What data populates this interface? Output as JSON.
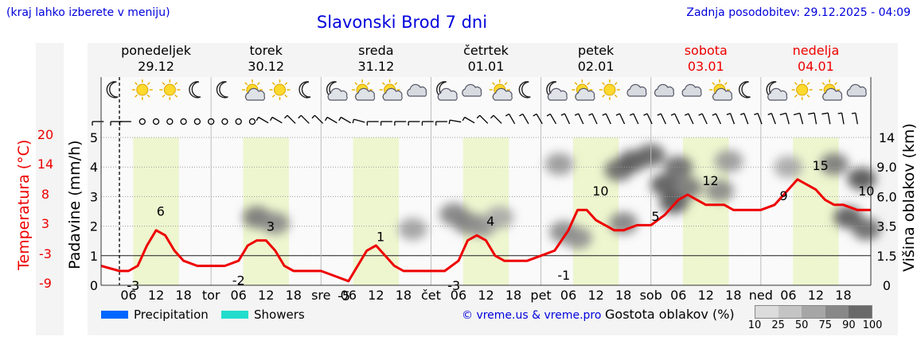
{
  "header": {
    "menu_hint": "(kraj lahko izberete v meniju)",
    "title": "Slavonski Brod 7 dni",
    "last_update": "Zadnja posodobitev: 29.12.2025 - 04:09"
  },
  "days": [
    {
      "name": "ponedeljek",
      "date": "29.12",
      "weekend": false,
      "abbr": ""
    },
    {
      "name": "torek",
      "date": "30.12",
      "weekend": false,
      "abbr": "tor"
    },
    {
      "name": "sreda",
      "date": "31.12",
      "weekend": false,
      "abbr": "sre"
    },
    {
      "name": "četrtek",
      "date": "01.01",
      "weekend": false,
      "abbr": "čet"
    },
    {
      "name": "petek",
      "date": "02.01",
      "weekend": false,
      "abbr": "pet"
    },
    {
      "name": "sobota",
      "date": "03.01",
      "weekend": true,
      "abbr": "sob"
    },
    {
      "name": "nedelja",
      "date": "04.01",
      "weekend": true,
      "abbr": "ned"
    }
  ],
  "hour_ticks": [
    "06",
    "12",
    "18"
  ],
  "weather_icons": [
    "moon-icon",
    "sun-icon",
    "sun-icon",
    "moon-icon",
    "moon-icon",
    "sun-cloud-icon",
    "sun-icon",
    "moon-icon",
    "moon-cloud-icon",
    "sun-cloud-icon",
    "sun-cloud-icon",
    "cloud-icon",
    "moon-cloud-icon",
    "cloud-icon",
    "sun-cloud-icon",
    "moon-icon",
    "moon-cloud-icon",
    "sun-cloud-icon",
    "sun-icon",
    "cloud-icon",
    "cloud-icon",
    "cloud-icon",
    "sun-cloud-icon",
    "moon-icon",
    "moon-cloud-icon",
    "sun-icon",
    "sun-cloud-icon",
    "cloud-icon"
  ],
  "chart_data": {
    "type": "line",
    "title": "Slavonski Brod 7 dni",
    "x_unit": "hours from 29.12 00:00",
    "x_range": [
      0,
      168
    ],
    "current_time_hour": 4,
    "left_axis": {
      "label": "Padavine (mm/h)",
      "ylim": [
        0,
        5
      ],
      "ticks": [
        0,
        1,
        2,
        3,
        4,
        5
      ]
    },
    "temperature_axis": {
      "label": "Temperatura (°C)",
      "ticks": [
        "20",
        "14",
        "8",
        "3",
        "-3",
        "-9"
      ],
      "color": "#ee0000"
    },
    "right_axis": {
      "label": "Višina oblakov (km)",
      "ticks": [
        "14",
        "9.0",
        "6.0",
        "3.5",
        "1.5",
        "0"
      ]
    },
    "temperature_series": {
      "name": "Temperatura",
      "unit": "°C",
      "x": [
        0,
        4,
        6,
        8,
        10,
        12,
        14,
        16,
        18,
        21,
        24,
        27,
        30,
        32,
        34,
        36,
        38,
        40,
        42,
        45,
        48,
        51,
        54,
        56,
        58,
        60,
        62,
        64,
        66,
        69,
        72,
        75,
        78,
        80,
        82,
        84,
        86,
        88,
        90,
        93,
        96,
        99,
        102,
        104,
        106,
        108,
        110,
        112,
        114,
        117,
        120,
        123,
        126,
        128,
        130,
        132,
        134,
        136,
        138,
        141,
        144,
        147,
        150,
        152,
        154,
        156,
        158,
        160,
        162,
        165,
        168
      ],
      "y": [
        -2,
        -3,
        -3,
        -2,
        2,
        5,
        4,
        1,
        -1,
        -2,
        -2,
        -2,
        -1,
        2,
        3,
        3,
        1,
        -2,
        -3,
        -3,
        -3,
        -4,
        -5,
        -2,
        1,
        2,
        0,
        -2,
        -3,
        -3,
        -3,
        -3,
        -1,
        3,
        4,
        3,
        0,
        -1,
        -1,
        -1,
        0,
        1,
        5,
        9,
        9,
        7,
        6,
        5,
        5,
        6,
        6,
        8,
        11,
        12,
        11,
        10,
        10,
        10,
        9,
        9,
        9,
        10,
        13,
        15,
        14,
        13,
        11,
        10,
        10,
        9,
        9
      ]
    },
    "temperature_labels": [
      {
        "x": 7,
        "text": "-3"
      },
      {
        "x": 13,
        "text": "6"
      },
      {
        "x": 30,
        "text": "-2"
      },
      {
        "x": 37,
        "text": "3"
      },
      {
        "x": 53,
        "text": "-5"
      },
      {
        "x": 61,
        "text": "1"
      },
      {
        "x": 77,
        "text": "-3"
      },
      {
        "x": 85,
        "text": "4"
      },
      {
        "x": 101,
        "text": "-1"
      },
      {
        "x": 109,
        "text": "10"
      },
      {
        "x": 121,
        "text": "5"
      },
      {
        "x": 133,
        "text": "12"
      },
      {
        "x": 149,
        "text": "9"
      },
      {
        "x": 157,
        "text": "15"
      },
      {
        "x": 167,
        "text": "10"
      }
    ],
    "wind_barbs": [
      {
        "x": 0,
        "dir": 270,
        "speed": 5
      },
      {
        "x": 4,
        "dir": 270,
        "speed": 5
      },
      {
        "x": 6,
        "dir": 270,
        "speed": 5
      },
      {
        "x": 9,
        "dir": 0,
        "speed": 0
      },
      {
        "x": 12,
        "dir": 0,
        "speed": 0
      },
      {
        "x": 15,
        "dir": 0,
        "speed": 0
      },
      {
        "x": 18,
        "dir": 0,
        "speed": 0
      },
      {
        "x": 21,
        "dir": 0,
        "speed": 0
      },
      {
        "x": 24,
        "dir": 0,
        "speed": 0
      },
      {
        "x": 27,
        "dir": 0,
        "speed": 0
      },
      {
        "x": 30,
        "dir": 0,
        "speed": 0
      },
      {
        "x": 33,
        "dir": 0,
        "speed": 0
      },
      {
        "x": 36,
        "dir": 300,
        "speed": 5
      },
      {
        "x": 39,
        "dir": 300,
        "speed": 5
      },
      {
        "x": 42,
        "dir": 315,
        "speed": 5
      },
      {
        "x": 45,
        "dir": 315,
        "speed": 5
      },
      {
        "x": 48,
        "dir": 315,
        "speed": 5
      },
      {
        "x": 51,
        "dir": 300,
        "speed": 5
      },
      {
        "x": 54,
        "dir": 300,
        "speed": 5
      },
      {
        "x": 57,
        "dir": 285,
        "speed": 5
      },
      {
        "x": 60,
        "dir": 270,
        "speed": 5
      },
      {
        "x": 63,
        "dir": 270,
        "speed": 5
      },
      {
        "x": 66,
        "dir": 270,
        "speed": 5
      },
      {
        "x": 69,
        "dir": 270,
        "speed": 5
      },
      {
        "x": 72,
        "dir": 270,
        "speed": 5
      },
      {
        "x": 75,
        "dir": 270,
        "speed": 5
      },
      {
        "x": 78,
        "dir": 280,
        "speed": 5
      },
      {
        "x": 81,
        "dir": 300,
        "speed": 5
      },
      {
        "x": 84,
        "dir": 315,
        "speed": 5
      },
      {
        "x": 87,
        "dir": 315,
        "speed": 5
      },
      {
        "x": 90,
        "dir": 330,
        "speed": 5
      },
      {
        "x": 93,
        "dir": 330,
        "speed": 5
      },
      {
        "x": 96,
        "dir": 330,
        "speed": 5
      },
      {
        "x": 99,
        "dir": 330,
        "speed": 5
      },
      {
        "x": 102,
        "dir": 335,
        "speed": 5
      },
      {
        "x": 105,
        "dir": 335,
        "speed": 5
      },
      {
        "x": 108,
        "dir": 335,
        "speed": 5
      },
      {
        "x": 111,
        "dir": 335,
        "speed": 5
      },
      {
        "x": 114,
        "dir": 335,
        "speed": 5
      },
      {
        "x": 117,
        "dir": 335,
        "speed": 5
      },
      {
        "x": 120,
        "dir": 335,
        "speed": 5
      },
      {
        "x": 123,
        "dir": 335,
        "speed": 5
      },
      {
        "x": 126,
        "dir": 335,
        "speed": 5
      },
      {
        "x": 129,
        "dir": 335,
        "speed": 5
      },
      {
        "x": 132,
        "dir": 335,
        "speed": 5
      },
      {
        "x": 135,
        "dir": 335,
        "speed": 5
      },
      {
        "x": 138,
        "dir": 340,
        "speed": 5
      },
      {
        "x": 141,
        "dir": 340,
        "speed": 5
      },
      {
        "x": 144,
        "dir": 340,
        "speed": 5
      },
      {
        "x": 147,
        "dir": 340,
        "speed": 5
      },
      {
        "x": 150,
        "dir": 345,
        "speed": 10
      },
      {
        "x": 153,
        "dir": 345,
        "speed": 10
      },
      {
        "x": 156,
        "dir": 350,
        "speed": 10
      },
      {
        "x": 159,
        "dir": 350,
        "speed": 10
      },
      {
        "x": 162,
        "dir": 350,
        "speed": 5
      },
      {
        "x": 165,
        "dir": 350,
        "speed": 5
      }
    ],
    "cloud_patches": [
      {
        "x": 34,
        "h": 2.3,
        "d": 60
      },
      {
        "x": 38,
        "h": 2.1,
        "d": 50
      },
      {
        "x": 68,
        "h": 1.9,
        "d": 35
      },
      {
        "x": 77,
        "h": 2.4,
        "d": 55
      },
      {
        "x": 80,
        "h": 2.1,
        "d": 55
      },
      {
        "x": 83,
        "h": 2.0,
        "d": 45
      },
      {
        "x": 87,
        "h": 2.3,
        "d": 30
      },
      {
        "x": 100,
        "h": 4.1,
        "d": 40
      },
      {
        "x": 101,
        "h": 1.8,
        "d": 50
      },
      {
        "x": 104,
        "h": 1.6,
        "d": 45
      },
      {
        "x": 113,
        "h": 3.9,
        "d": 70
      },
      {
        "x": 116,
        "h": 4.2,
        "d": 80
      },
      {
        "x": 114,
        "h": 2.1,
        "d": 55
      },
      {
        "x": 120,
        "h": 4.4,
        "d": 75
      },
      {
        "x": 123,
        "h": 3.4,
        "d": 80
      },
      {
        "x": 125,
        "h": 2.8,
        "d": 85
      },
      {
        "x": 126,
        "h": 4.0,
        "d": 70
      },
      {
        "x": 128,
        "h": 3.3,
        "d": 60
      },
      {
        "x": 135,
        "h": 3.2,
        "d": 50
      },
      {
        "x": 137,
        "h": 4.2,
        "d": 40
      },
      {
        "x": 150,
        "h": 4.0,
        "d": 30
      },
      {
        "x": 160,
        "h": 4.1,
        "d": 60
      },
      {
        "x": 163,
        "h": 2.3,
        "d": 80
      },
      {
        "x": 166,
        "h": 3.6,
        "d": 85
      },
      {
        "x": 167,
        "h": 1.9,
        "d": 70
      }
    ]
  },
  "legend": {
    "precipitation_label": "Precipitation",
    "precipitation_color": "#0066ff",
    "showers_label": "Showers",
    "showers_color": "#22ddcc",
    "copyright": "© vreme.us & vreme.pro",
    "cloud_density_label": "Gostota oblakov (%)",
    "cloud_density_ticks": [
      "10",
      "25",
      "50",
      "75",
      "90",
      "100"
    ]
  }
}
